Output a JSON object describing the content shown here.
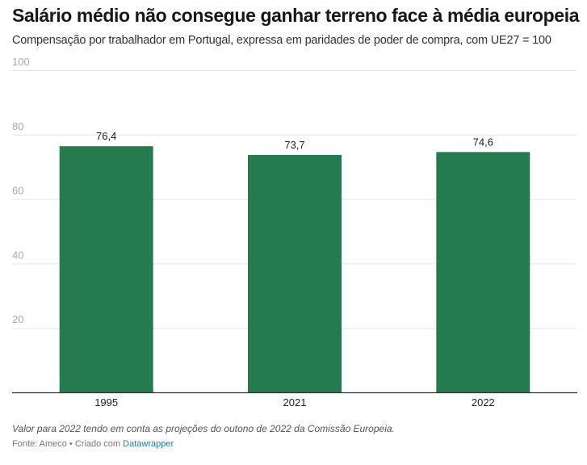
{
  "header": {
    "title": "Salário médio não consegue ganhar terreno face à média europeia",
    "subtitle": "Compensação por trabalhador em Portugal, expressa em paridades de poder de compra, com UE27 = 100"
  },
  "footer": {
    "note": "Valor para 2022 tendo em conta as projeções do outono de 2022 da Comissão Europeia.",
    "source_prefix": "Fonte: Ameco • Criado com ",
    "source_link": "Datawrapper"
  },
  "colors": {
    "bar": "#237b4f",
    "grid": "#e6e6e6",
    "axis": "#333333",
    "tick_label": "#aaaaaa",
    "link": "#1d81a2"
  },
  "chart_data": {
    "type": "bar",
    "title": "Salário médio não consegue ganhar terreno face à média europeia",
    "subtitle": "Compensação por trabalhador em Portugal, expressa em paridades de poder de compra, com UE27 = 100",
    "categories": [
      "1995",
      "2021",
      "2022"
    ],
    "values": [
      76.4,
      73.7,
      74.6
    ],
    "value_labels": [
      "76,4",
      "73,7",
      "74,6"
    ],
    "xlabel": "",
    "ylabel": "",
    "ylim": [
      0,
      100
    ],
    "yticks": [
      20,
      40,
      60,
      80,
      100
    ],
    "ytick_labels": [
      "20",
      "40",
      "60",
      "80",
      "100"
    ],
    "grid": true,
    "legend": "none"
  }
}
